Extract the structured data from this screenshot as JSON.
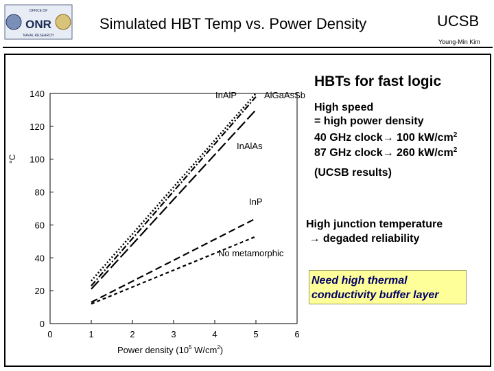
{
  "header": {
    "title": "Simulated HBT Temp vs. Power Density",
    "org": "UCSB",
    "author": "Young-Min Kim"
  },
  "logo": {
    "name": "office-of-naval-research-logo",
    "text": "OFFICE OF NAVAL RESEARCH",
    "mark": "ONR"
  },
  "chart_data": {
    "type": "line",
    "xlabel": "Power density (10",
    "xlabel_exp": "5",
    "xlabel_unit": " W/cm",
    "xlabel_unit_exp": "2",
    "xlabel_end": ")",
    "ylabel_unit": "°C",
    "xlim": [
      0,
      6
    ],
    "ylim": [
      0,
      140
    ],
    "xticks": [
      "0",
      "1",
      "2",
      "3",
      "4",
      "5",
      "6"
    ],
    "yticks": [
      "0",
      "20",
      "40",
      "60",
      "80",
      "100",
      "120",
      "140"
    ],
    "series": [
      {
        "name": "InAlP",
        "style": "dash-dot",
        "x": [
          1,
          5
        ],
        "y": [
          23,
          138
        ]
      },
      {
        "name": "AlGaAsSb",
        "style": "dotted",
        "x": [
          1,
          5
        ],
        "y": [
          26,
          140
        ]
      },
      {
        "name": "InAlAs",
        "style": "long-dash",
        "x": [
          1,
          5
        ],
        "y": [
          21,
          130
        ]
      },
      {
        "name": "InP",
        "style": "dash",
        "x": [
          1,
          5
        ],
        "y": [
          13,
          64
        ]
      },
      {
        "name": "No metamorphic",
        "style": "short-dash",
        "x": [
          1,
          5
        ],
        "y": [
          12,
          53
        ]
      }
    ]
  },
  "panel": {
    "heading": "HBTs for fast logic",
    "speed_line1": "High speed",
    "speed_line2": "= high power density",
    "speed_line3_a": "40 GHz clock",
    "speed_line3_b": " 100 kW/cm",
    "speed_line3_exp": "2",
    "speed_line4_a": "87 GHz clock",
    "speed_line4_b": " 260 kW/cm",
    "speed_line4_exp": "2",
    "ucsb_note": "(UCSB results)",
    "temp_line1": "High junction temperature",
    "temp_line2": "degaded reliability",
    "arrow": "→",
    "callout": "Need high thermal conductivity buffer layer"
  }
}
